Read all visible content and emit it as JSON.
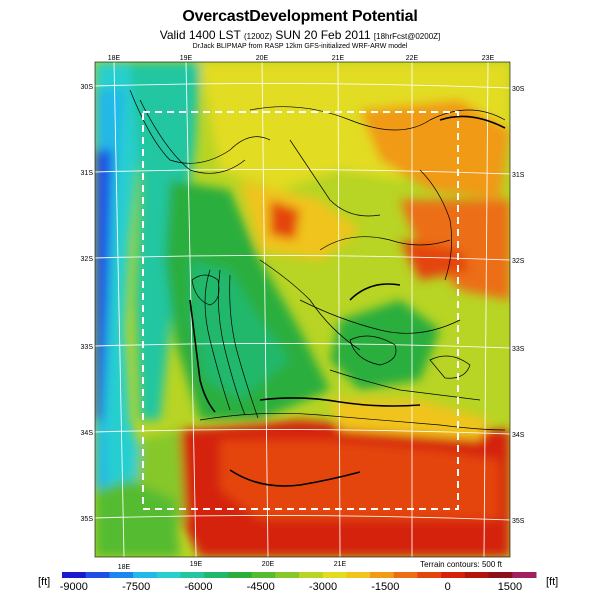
{
  "header": {
    "title": "OvercastDevelopment Potential",
    "subtitle_main": "Valid 1400 LST",
    "subtitle_lst_code": "(1200Z)",
    "subtitle_date": "SUN 20 Feb 2011",
    "subtitle_forecast": "[18hrFcst@0200Z]",
    "credit": "DrJack BLIPMAP from RASP 12km GFS-initialized WRF-ARW model"
  },
  "map": {
    "top_lon_labels": [
      "18E",
      "19E",
      "20E",
      "21E",
      "22E",
      "23E"
    ],
    "bottom_lon_labels": [
      "18E",
      "19E",
      "20E",
      "21E"
    ],
    "left_lat_labels": [
      "30S",
      "31S",
      "32S",
      "33S",
      "34S",
      "35S"
    ],
    "right_lat_labels": [
      "30S",
      "31S",
      "32S",
      "33S",
      "34S",
      "35S"
    ],
    "terrain_note": "Terrain contours: 500 ft"
  },
  "colorbar": {
    "unit_left": "[ft]",
    "unit_right": "[ft]",
    "tick_labels": [
      "-9000",
      "-7500",
      "-6000",
      "-4500",
      "-3000",
      "-1500",
      "0",
      "1500"
    ],
    "min": -9000,
    "max": 1500,
    "colors": [
      "#1a1acc",
      "#1e4fe6",
      "#1c86f0",
      "#22b8e8",
      "#28cfcf",
      "#24c6a0",
      "#22b86c",
      "#2cae3c",
      "#54bc30",
      "#86c829",
      "#b8d424",
      "#e2dc20",
      "#f0c41a",
      "#f09a16",
      "#ec6e12",
      "#e4440e",
      "#d4200c",
      "#b4140e",
      "#8c1018",
      "#a02060"
    ]
  }
}
